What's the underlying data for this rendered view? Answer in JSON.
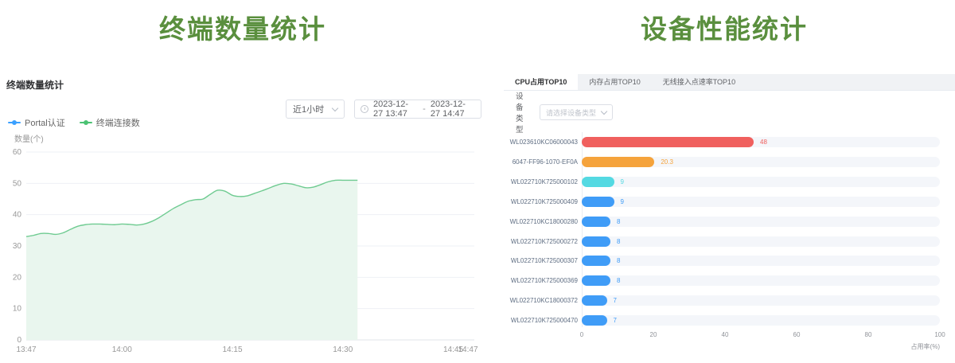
{
  "page": {
    "left_title": "终端数量统计",
    "right_title": "设备性能统计",
    "title_color": "#5a8f3e"
  },
  "terminal_panel": {
    "header": "终端数量统计",
    "range_select": {
      "value": "近1小时"
    },
    "date_range": {
      "start": "2023-12-27 13:47",
      "separator": "-",
      "end": "2023-12-27 14:47"
    },
    "legend": [
      {
        "label": "Portal认证",
        "color": "#3aa0ff"
      },
      {
        "label": "终端连接数",
        "color": "#4bc273"
      }
    ],
    "y_axis_name": "数量(个)"
  },
  "performance_panel": {
    "tabs": [
      {
        "label": "CPU占用TOP10",
        "active": true
      },
      {
        "label": "内存占用TOP10",
        "active": false
      },
      {
        "label": "无线接入点速率TOP10",
        "active": false
      }
    ],
    "device_type_label": "设备类型",
    "device_type_placeholder": "请选择设备类型"
  },
  "chart_data": [
    {
      "type": "area",
      "title": "终端数量统计",
      "series_name": "终端连接数",
      "line_color": "#6fcb91",
      "fill_color": "#e9f6ee",
      "ylim": [
        0,
        60
      ],
      "y_ticks": [
        0,
        10,
        20,
        30,
        40,
        50,
        60
      ],
      "ylabel": "数量(个)",
      "x_range": [
        "13:47",
        "14:47"
      ],
      "x_ticks": [
        {
          "label": "13:47",
          "minute": 0
        },
        {
          "label": "14:00",
          "minute": 13
        },
        {
          "label": "14:15",
          "minute": 28
        },
        {
          "label": "14:30",
          "minute": 43
        },
        {
          "label": "14:45",
          "minute": 58
        },
        {
          "label": "14:47",
          "minute": 60
        }
      ],
      "x_times": [
        "13:47",
        "13:48",
        "13:49",
        "13:50",
        "13:51",
        "13:52",
        "13:53",
        "13:54",
        "13:55",
        "13:56",
        "13:57",
        "13:58",
        "13:59",
        "14:00",
        "14:01",
        "14:02",
        "14:03",
        "14:04",
        "14:05",
        "14:06",
        "14:07",
        "14:08",
        "14:09",
        "14:10",
        "14:11",
        "14:12",
        "14:13",
        "14:14",
        "14:15",
        "14:16",
        "14:17",
        "14:18",
        "14:19",
        "14:20",
        "14:21",
        "14:22",
        "14:23",
        "14:24",
        "14:25",
        "14:26",
        "14:27",
        "14:28",
        "14:29",
        "14:30",
        "14:31",
        "14:32"
      ],
      "values": [
        33,
        33.4,
        34,
        34,
        33.7,
        34.2,
        35.3,
        36.3,
        36.8,
        37,
        37,
        36.9,
        36.8,
        37,
        36.9,
        36.7,
        37,
        37.8,
        39,
        40.5,
        42,
        43.2,
        44.3,
        44.8,
        45,
        46.5,
        47.8,
        47.5,
        46.2,
        45.8,
        46,
        46.8,
        47.6,
        48.5,
        49.4,
        50,
        49.8,
        49.2,
        48.6,
        48.8,
        49.6,
        50.5,
        51,
        51,
        51,
        51
      ]
    },
    {
      "type": "bar",
      "title": "CPU占用TOP10",
      "orientation": "horizontal",
      "categories": [
        "WL023610KC06000043",
        "6047-FF96-1070-EF0A",
        "WL022710K725000102",
        "WL022710K725000409",
        "WL022710KC18000280",
        "WL022710K725000272",
        "WL022710K725000307",
        "WL022710K725000369",
        "WL022710KC18000372",
        "WL022710K725000470"
      ],
      "values": [
        48,
        20.3,
        9,
        9,
        8,
        8,
        8,
        8,
        7,
        7
      ],
      "bar_colors": [
        "#f0605e",
        "#f5a33c",
        "#54d9e2",
        "#3f9cf7",
        "#3f9cf7",
        "#3f9cf7",
        "#3f9cf7",
        "#3f9cf7",
        "#3f9cf7",
        "#3f9cf7"
      ],
      "track_color": "#f4f6fa",
      "xlim": [
        0,
        100
      ],
      "x_ticks": [
        0,
        20,
        40,
        60,
        80,
        100
      ],
      "xlabel": "占用率(%)"
    }
  ]
}
